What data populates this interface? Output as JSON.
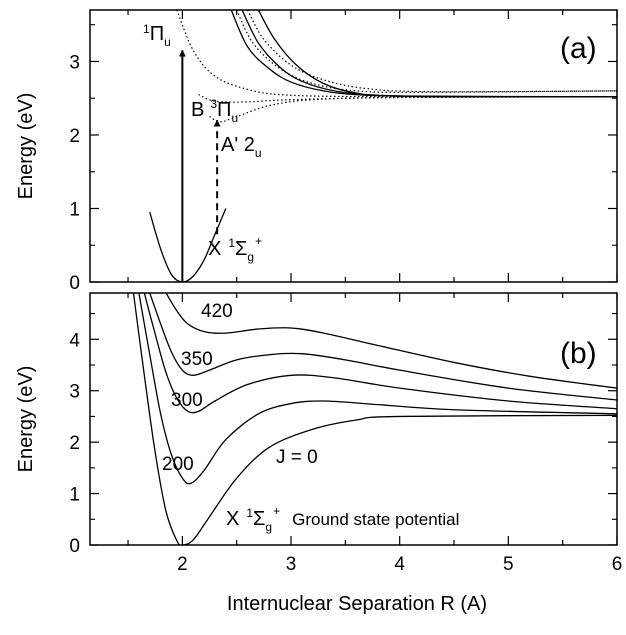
{
  "chart_data": [
    {
      "panel": "(a)",
      "type": "line",
      "xlim": [
        1.15,
        6.0
      ],
      "ylim": [
        0,
        3.7
      ],
      "y_ticks": [
        "0",
        "1",
        "2",
        "3"
      ],
      "ylabel": "Energy (eV)",
      "grid": false,
      "series": [
        {
          "style": "solid",
          "points": [
            [
              1.7,
              0.95
            ],
            [
              1.8,
              0.45
            ],
            [
              1.9,
              0.1
            ],
            [
              2.0,
              0.0
            ],
            [
              2.1,
              0.08
            ],
            [
              2.2,
              0.3
            ],
            [
              2.3,
              0.65
            ],
            [
              2.4,
              1.0
            ]
          ]
        },
        {
          "style": "solid",
          "points": [
            [
              2.45,
              3.7
            ],
            [
              2.6,
              3.2
            ],
            [
              2.8,
              2.9
            ],
            [
              3.0,
              2.72
            ],
            [
              3.3,
              2.6
            ],
            [
              3.7,
              2.54
            ],
            [
              4.5,
              2.52
            ],
            [
              6.0,
              2.52
            ]
          ]
        },
        {
          "style": "solid",
          "points": [
            [
              2.55,
              3.7
            ],
            [
              2.7,
              3.25
            ],
            [
              2.9,
              2.92
            ],
            [
              3.1,
              2.73
            ],
            [
              3.4,
              2.6
            ],
            [
              3.8,
              2.54
            ],
            [
              4.5,
              2.52
            ],
            [
              6.0,
              2.52
            ]
          ]
        },
        {
          "style": "solid",
          "points": [
            [
              2.7,
              3.7
            ],
            [
              2.85,
              3.3
            ],
            [
              3.05,
              2.95
            ],
            [
              3.3,
              2.7
            ],
            [
              3.6,
              2.57
            ],
            [
              4.0,
              2.53
            ],
            [
              6.0,
              2.52
            ]
          ]
        },
        {
          "style": "dotted",
          "points": [
            [
              1.95,
              3.7
            ],
            [
              2.1,
              3.15
            ],
            [
              2.3,
              2.8
            ],
            [
              2.6,
              2.62
            ],
            [
              3.0,
              2.54
            ],
            [
              4.0,
              2.52
            ],
            [
              6.0,
              2.52
            ]
          ]
        },
        {
          "style": "dotted",
          "points": [
            [
              2.25,
              2.25
            ],
            [
              2.35,
              2.18
            ],
            [
              2.5,
              2.25
            ],
            [
              2.8,
              2.4
            ],
            [
              3.2,
              2.48
            ],
            [
              4.0,
              2.51
            ],
            [
              6.0,
              2.52
            ]
          ]
        },
        {
          "style": "dotted",
          "points": [
            [
              2.15,
              2.55
            ],
            [
              2.3,
              2.46
            ],
            [
              2.6,
              2.45
            ],
            [
              3.0,
              2.48
            ],
            [
              4.0,
              2.51
            ],
            [
              6.0,
              2.52
            ]
          ]
        },
        {
          "style": "dotted",
          "points": [
            [
              2.5,
              3.7
            ],
            [
              2.65,
              3.25
            ],
            [
              2.9,
              2.9
            ],
            [
              3.2,
              2.7
            ],
            [
              3.6,
              2.6
            ],
            [
              4.2,
              2.58
            ],
            [
              6.0,
              2.6
            ]
          ]
        },
        {
          "style": "dotted",
          "points": [
            [
              2.6,
              3.7
            ],
            [
              2.75,
              3.3
            ],
            [
              3.0,
              2.95
            ],
            [
              3.3,
              2.75
            ],
            [
              3.7,
              2.63
            ],
            [
              4.3,
              2.59
            ],
            [
              6.0,
              2.6
            ]
          ]
        }
      ],
      "arrows": [
        {
          "style": "solid",
          "from": [
            2.0,
            0.0
          ],
          "to": [
            2.0,
            3.15
          ]
        },
        {
          "style": "dashed",
          "from": [
            2.32,
            0.65
          ],
          "to": [
            2.32,
            2.2
          ]
        }
      ],
      "annotations": {
        "pi_u": {
          "text": "1Πu",
          "at": [
            1.9,
            3.25
          ]
        },
        "b_state": {
          "text": "B 3Πu",
          "at": [
            2.3,
            2.35
          ]
        },
        "a_state": {
          "text": "A' 2u",
          "at": [
            2.45,
            1.95
          ]
        },
        "x_state": {
          "text": "X 1Σg+",
          "at": [
            2.35,
            0.35
          ]
        }
      }
    },
    {
      "panel": "(b)",
      "type": "line",
      "xlim": [
        1.15,
        6.0
      ],
      "ylim": [
        0,
        4.9
      ],
      "x_ticks": [
        "2",
        "3",
        "4",
        "5",
        "6"
      ],
      "y_ticks": [
        "0",
        "1",
        "2",
        "3",
        "4"
      ],
      "xlabel": "Internuclear Separation R (A)",
      "ylabel": "Energy (eV)",
      "grid": false,
      "series": [
        {
          "name": "J = 0",
          "points": [
            [
              1.55,
              4.9
            ],
            [
              1.65,
              3.3
            ],
            [
              1.75,
              1.8
            ],
            [
              1.85,
              0.65
            ],
            [
              1.95,
              0.08
            ],
            [
              2.0,
              0.0
            ],
            [
              2.1,
              0.1
            ],
            [
              2.25,
              0.55
            ],
            [
              2.5,
              1.3
            ],
            [
              2.8,
              1.9
            ],
            [
              3.2,
              2.25
            ],
            [
              3.6,
              2.43
            ],
            [
              4.0,
              2.5
            ],
            [
              6.0,
              2.52
            ]
          ]
        },
        {
          "name": "200",
          "points": [
            [
              1.6,
              4.9
            ],
            [
              1.7,
              3.7
            ],
            [
              1.8,
              2.55
            ],
            [
              1.9,
              1.75
            ],
            [
              2.0,
              1.3
            ],
            [
              2.08,
              1.2
            ],
            [
              2.2,
              1.45
            ],
            [
              2.4,
              2.05
            ],
            [
              2.7,
              2.55
            ],
            [
              3.0,
              2.75
            ],
            [
              3.3,
              2.8
            ],
            [
              3.8,
              2.73
            ],
            [
              4.5,
              2.63
            ],
            [
              6.0,
              2.55
            ]
          ]
        },
        {
          "name": "300",
          "points": [
            [
              1.65,
              4.9
            ],
            [
              1.75,
              4.1
            ],
            [
              1.85,
              3.35
            ],
            [
              1.95,
              2.85
            ],
            [
              2.05,
              2.6
            ],
            [
              2.15,
              2.6
            ],
            [
              2.3,
              2.8
            ],
            [
              2.6,
              3.12
            ],
            [
              3.0,
              3.3
            ],
            [
              3.4,
              3.25
            ],
            [
              4.0,
              3.05
            ],
            [
              5.0,
              2.8
            ],
            [
              6.0,
              2.65
            ]
          ]
        },
        {
          "name": "350",
          "points": [
            [
              1.7,
              4.9
            ],
            [
              1.8,
              4.3
            ],
            [
              1.9,
              3.75
            ],
            [
              2.0,
              3.4
            ],
            [
              2.1,
              3.3
            ],
            [
              2.25,
              3.4
            ],
            [
              2.5,
              3.6
            ],
            [
              2.8,
              3.7
            ],
            [
              3.1,
              3.72
            ],
            [
              3.5,
              3.6
            ],
            [
              4.0,
              3.4
            ],
            [
              5.0,
              3.05
            ],
            [
              6.0,
              2.82
            ]
          ]
        },
        {
          "name": "420",
          "points": [
            [
              1.85,
              4.9
            ],
            [
              1.95,
              4.55
            ],
            [
              2.05,
              4.3
            ],
            [
              2.2,
              4.15
            ],
            [
              2.4,
              4.12
            ],
            [
              2.7,
              4.2
            ],
            [
              3.0,
              4.22
            ],
            [
              3.3,
              4.12
            ],
            [
              3.8,
              3.88
            ],
            [
              4.5,
              3.55
            ],
            [
              5.2,
              3.28
            ],
            [
              6.0,
              3.05
            ]
          ]
        }
      ],
      "annotations": {
        "ground": {
          "text": "X 1Σg+",
          "caption": "Ground state potential",
          "at": [
            2.3,
            0.35
          ]
        }
      }
    }
  ],
  "panel_a": {
    "tag": "(a)",
    "ylabel": "Energy (eV)"
  },
  "panel_b": {
    "tag": "(b)",
    "ylabel": "Energy (eV)",
    "xlabel": "Internuclear Separation R (A)"
  },
  "labels_a": {
    "pi_sup": "1",
    "pi_main": "Π",
    "pi_sub": "u",
    "b_main": "B",
    "b_sup": "3",
    "b_pi": "Π",
    "b_sub": "u",
    "a_main": "A' 2",
    "a_sub": "u",
    "x_main": "X",
    "x_sup": "1",
    "x_sigma": "Σ",
    "x_sub": "g",
    "x_plus": "+"
  },
  "labels_b": {
    "j0": "J = 0",
    "j200": "200",
    "j300": "300",
    "j350": "350",
    "j420": "420",
    "x_main": "X",
    "x_sup": "1",
    "x_sigma": "Σ",
    "x_sub": "g",
    "x_plus": "+",
    "ground": "Ground state potential"
  }
}
